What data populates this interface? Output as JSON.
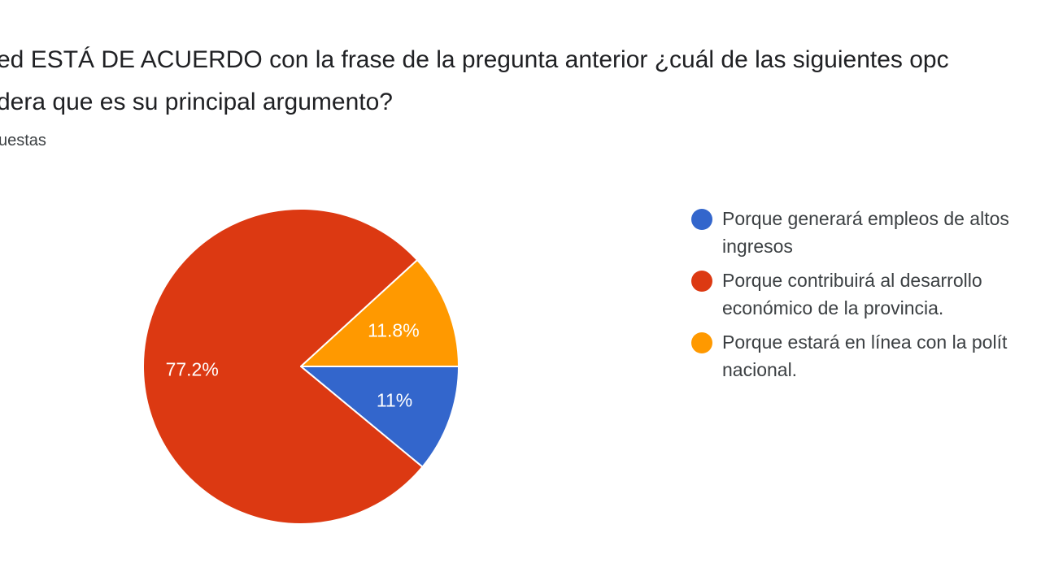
{
  "question": {
    "line1": "ed ESTÁ DE ACUERDO con la frase de la pregunta anterior ¿cuál de las siguientes opc",
    "line2": "dera que es su principal argumento?"
  },
  "responses_label": "uestas",
  "chart_data": {
    "type": "pie",
    "slices": [
      {
        "label_lines": [
          "Porque generará empleos de altos",
          "ingresos"
        ],
        "value": 11.0,
        "display": "11%",
        "color": "#3366cc"
      },
      {
        "label_lines": [
          "Porque contribuirá al desarrollo",
          "económico de la provincia."
        ],
        "value": 77.2,
        "display": "77.2%",
        "color": "#dc3912"
      },
      {
        "label_lines": [
          "Porque estará en línea con la polít",
          "nacional."
        ],
        "value": 11.8,
        "display": "11.8%",
        "color": "#ff9900"
      }
    ],
    "legend_position": "right"
  }
}
